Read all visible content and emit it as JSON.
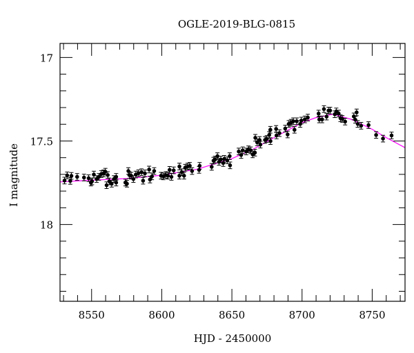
{
  "chart_data": {
    "type": "scatter",
    "title": "OGLE-2019-BLG-0815",
    "xlabel": "HJD - 2450000",
    "ylabel": "I magnitude",
    "xlim": [
      8527.5,
      8773.4
    ],
    "ylim": [
      18.46,
      16.916
    ],
    "y_inverted": true,
    "grid": false,
    "x_major_ticks": [
      8550,
      8600,
      8650,
      8700,
      8750
    ],
    "x_tick_labels": [
      "8550",
      "8600",
      "8650",
      "8700",
      "8750"
    ],
    "x_minor_step": 10,
    "y_major_ticks": [
      17,
      17.5,
      18
    ],
    "y_tick_labels": [
      "17",
      "17.5",
      "18"
    ],
    "y_minor_step": 0.1,
    "colors": {
      "points": "#000000",
      "model": "#ff00ff",
      "axes": "#000000"
    },
    "typical_error": 0.02,
    "series": [
      {
        "name": "data",
        "x": [
          8530.7,
          8532.6,
          8534.8,
          8535.6,
          8539.7,
          8544.6,
          8547.9,
          8549.5,
          8550.3,
          8551.6,
          8553.6,
          8555.2,
          8556.9,
          8558.5,
          8559.8,
          8560.7,
          8561.5,
          8562.6,
          8564.3,
          8565.9,
          8567.5,
          8567.5,
          8574.1,
          8575.2,
          8576.2,
          8576.9,
          8578.2,
          8579.8,
          8581.5,
          8583.4,
          8585.6,
          8586.7,
          8588.0,
          8591.0,
          8591.6,
          8593.0,
          8594.6,
          8599.5,
          8601.1,
          8602.8,
          8604.4,
          8605.6,
          8606.9,
          8608.5,
          8612.6,
          8612.6,
          8614.3,
          8615.9,
          8616.7,
          8618.4,
          8620.0,
          8621.6,
          8626.6,
          8627.0,
          8635.6,
          8636.9,
          8638.0,
          8639.7,
          8640.8,
          8642.1,
          8643.8,
          8644.6,
          8646.7,
          8648.4,
          8648.7,
          8654.9,
          8656.6,
          8657.7,
          8660.2,
          8661.8,
          8663.4,
          8664.8,
          8666.4,
          8666.7,
          8668.0,
          8669.7,
          8670.3,
          8673.6,
          8674.9,
          8676.6,
          8677.4,
          8677.5,
          8681.5,
          8681.8,
          8683.9,
          8688.0,
          8689.7,
          8690.5,
          8692.1,
          8693.8,
          8694.6,
          8696.2,
          8698.7,
          8699.5,
          8702.0,
          8704.1,
          8711.8,
          8712.3,
          8714.3,
          8715.6,
          8717.5,
          8718.9,
          8720.0,
          8723.3,
          8724.4,
          8726.1,
          8727.4,
          8728.7,
          8730.7,
          8736.9,
          8738.0,
          8738.9,
          8739.7,
          8742.1,
          8747.4,
          8752.8,
          8757.7,
          8763.8
        ],
        "y": [
          17.737,
          17.706,
          17.739,
          17.709,
          17.715,
          17.719,
          17.723,
          17.749,
          17.742,
          17.701,
          17.728,
          17.715,
          17.698,
          17.694,
          17.684,
          17.765,
          17.704,
          17.742,
          17.756,
          17.728,
          17.749,
          17.715,
          17.749,
          17.756,
          17.68,
          17.704,
          17.708,
          17.728,
          17.701,
          17.693,
          17.687,
          17.738,
          17.694,
          17.671,
          17.731,
          17.712,
          17.68,
          17.708,
          17.712,
          17.704,
          17.708,
          17.673,
          17.715,
          17.676,
          17.653,
          17.708,
          17.687,
          17.708,
          17.66,
          17.653,
          17.649,
          17.68,
          17.673,
          17.649,
          17.655,
          17.618,
          17.611,
          17.591,
          17.625,
          17.611,
          17.632,
          17.607,
          17.616,
          17.591,
          17.646,
          17.563,
          17.584,
          17.556,
          17.563,
          17.55,
          17.556,
          17.58,
          17.57,
          17.481,
          17.508,
          17.494,
          17.522,
          17.494,
          17.488,
          17.464,
          17.433,
          17.501,
          17.428,
          17.467,
          17.453,
          17.426,
          17.461,
          17.398,
          17.391,
          17.382,
          17.433,
          17.382,
          17.398,
          17.378,
          17.371,
          17.36,
          17.336,
          17.371,
          17.371,
          17.309,
          17.354,
          17.318,
          17.318,
          17.34,
          17.323,
          17.336,
          17.364,
          17.368,
          17.384,
          17.353,
          17.373,
          17.329,
          17.398,
          17.409,
          17.405,
          17.464,
          17.486,
          17.467
        ]
      },
      {
        "name": "model",
        "x": [
          8527.5,
          8550,
          8575,
          8600,
          8625,
          8650,
          8665,
          8680,
          8700,
          8710,
          8722,
          8735,
          8750,
          8760,
          8773.4
        ],
        "y": [
          17.745,
          17.735,
          17.725,
          17.705,
          17.67,
          17.606,
          17.55,
          17.48,
          17.39,
          17.36,
          17.34,
          17.37,
          17.43,
          17.48,
          17.54
        ]
      }
    ]
  }
}
